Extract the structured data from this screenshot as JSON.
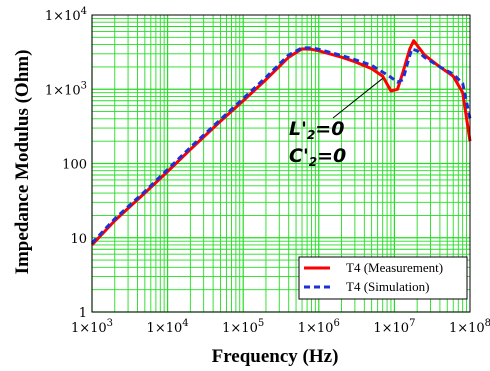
{
  "chart_data": {
    "type": "line",
    "xscale": "log",
    "yscale": "log",
    "xlim": [
      1000,
      100000000
    ],
    "ylim": [
      1,
      10000
    ],
    "grid": true,
    "xlabel": "Frequency (Hz)",
    "ylabel": "Impedance Modulus (Ohm)",
    "xticks": [
      {
        "v": 1000,
        "m": "1×10",
        "e": "3"
      },
      {
        "v": 10000,
        "m": "1×10",
        "e": "4"
      },
      {
        "v": 100000,
        "m": "1×10",
        "e": "5"
      },
      {
        "v": 1000000,
        "m": "1×10",
        "e": "6"
      },
      {
        "v": 10000000,
        "m": "1×10",
        "e": "7"
      },
      {
        "v": 100000000,
        "m": "1×10",
        "e": "8"
      }
    ],
    "yticks": [
      {
        "v": 1,
        "m": "1",
        "e": ""
      },
      {
        "v": 10,
        "m": "10",
        "e": ""
      },
      {
        "v": 100,
        "m": "100",
        "e": ""
      },
      {
        "v": 1000,
        "m": "1×10",
        "e": "3"
      },
      {
        "v": 10000,
        "m": "1×10",
        "e": "4"
      }
    ],
    "legend_position": "bottom-right",
    "series": [
      {
        "name": "T4 (Measurement)",
        "color": "#ff0000",
        "style": "solid",
        "x": [
          1000,
          2000,
          5000,
          10000,
          20000,
          50000,
          100000,
          200000,
          400000,
          600000,
          800000,
          1000000,
          2000000,
          3000000,
          5000000,
          7000000,
          9000000,
          11000000,
          13000000,
          16000000,
          18000000,
          20000000,
          25000000,
          30000000,
          40000000,
          60000000,
          80000000,
          100000000
        ],
        "y": [
          8,
          17,
          40,
          78,
          155,
          370,
          700,
          1350,
          2700,
          3500,
          3450,
          3300,
          2700,
          2350,
          1900,
          1500,
          950,
          1000,
          1700,
          3500,
          4500,
          3900,
          2900,
          2500,
          2000,
          1500,
          900,
          200
        ]
      },
      {
        "name": "T4 (Simulation)",
        "color": "#1f2fd6",
        "style": "dashed",
        "x": [
          1000,
          2000,
          5000,
          10000,
          20000,
          50000,
          100000,
          200000,
          400000,
          600000,
          800000,
          1000000,
          2000000,
          3000000,
          5000000,
          7000000,
          9000000,
          11000000,
          13000000,
          15000000,
          17000000,
          20000000,
          25000000,
          30000000,
          40000000,
          60000000,
          80000000,
          100000000
        ],
        "y": [
          8.5,
          18,
          42,
          83,
          165,
          390,
          750,
          1450,
          2900,
          3600,
          3600,
          3450,
          2850,
          2500,
          2100,
          1700,
          1450,
          1250,
          1350,
          2300,
          3500,
          3300,
          2700,
          2400,
          2000,
          1600,
          1200,
          400
        ]
      }
    ]
  },
  "annotation": {
    "l_line1": "L'",
    "l_sub": "2",
    "l_rest": "=0",
    "c_line1": "C'",
    "c_sub": "2",
    "c_rest": "=0",
    "arrow_target": {
      "x": 9000000,
      "y": 1500
    }
  },
  "colors": {
    "grid": "#22dd22",
    "frame": "#000000"
  }
}
